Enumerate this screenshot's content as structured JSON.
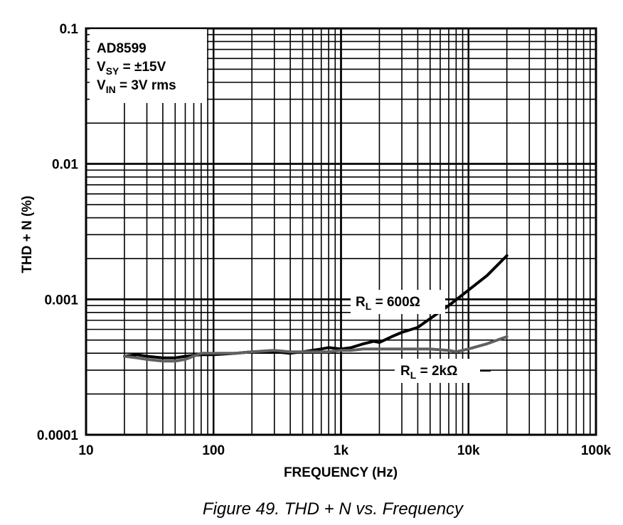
{
  "chart_data": {
    "type": "line",
    "title": "",
    "xlabel": "FREQUENCY (Hz)",
    "ylabel": "THD + N (%)",
    "xscale": "log",
    "yscale": "log",
    "xlim": [
      10,
      100000
    ],
    "ylim": [
      0.0001,
      0.1
    ],
    "grid": true,
    "x_tick_labels": [
      "10",
      "100",
      "1k",
      "10k",
      "100k"
    ],
    "y_tick_labels": [
      "0.1",
      "0.01",
      "0.001",
      "0.0001"
    ],
    "legend_box": {
      "device": "AD8599",
      "vsy_main": "V",
      "vsy_sub": "SY",
      "vsy_rest": " = ±15V",
      "vin_main": "V",
      "vin_sub": "IN",
      "vin_rest": " = 3V rms"
    },
    "series": [
      {
        "name": "RL = 600Ω",
        "label_main": "R",
        "label_sub": "L",
        "label_rest": " = 600Ω",
        "color": "#000000",
        "x": [
          20,
          25,
          30,
          40,
          50,
          60,
          80,
          100,
          150,
          200,
          300,
          400,
          500,
          700,
          800,
          1000,
          1200,
          1500,
          1800,
          2000,
          2500,
          3000,
          4000,
          5000,
          7000,
          10000,
          14000,
          20000
        ],
        "y": [
          0.00038,
          0.00039,
          0.00038,
          0.00037,
          0.00037,
          0.00038,
          0.00039,
          0.00039,
          0.0004,
          0.00041,
          0.00041,
          0.0004,
          0.00041,
          0.00043,
          0.00044,
          0.00043,
          0.00044,
          0.00047,
          0.00049,
          0.00048,
          0.00053,
          0.00057,
          0.00062,
          0.00072,
          0.0009,
          0.00117,
          0.0015,
          0.0021
        ]
      },
      {
        "name": "RL = 2kΩ",
        "label_main": "R",
        "label_sub": "L",
        "label_rest": " = 2kΩ",
        "color": "#606060",
        "x": [
          20,
          25,
          30,
          40,
          50,
          60,
          80,
          100,
          150,
          200,
          300,
          400,
          500,
          700,
          800,
          1000,
          1200,
          1500,
          2000,
          3000,
          4000,
          5000,
          7000,
          8000,
          10000,
          14000,
          20000
        ],
        "y": [
          0.00038,
          0.00037,
          0.00036,
          0.00035,
          0.00035,
          0.00036,
          0.0004,
          0.0004,
          0.0004,
          0.00041,
          0.00042,
          0.00041,
          0.00041,
          0.00041,
          0.00041,
          0.00042,
          0.00042,
          0.00043,
          0.00043,
          0.00043,
          0.00043,
          0.00043,
          0.00042,
          0.00041,
          0.00043,
          0.00047,
          0.00053
        ]
      }
    ]
  },
  "caption": "Figure 49. THD + N vs. Frequency"
}
